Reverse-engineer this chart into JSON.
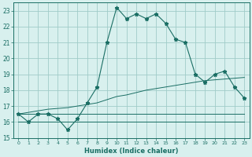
{
  "x": [
    0,
    1,
    2,
    3,
    4,
    5,
    6,
    7,
    8,
    9,
    10,
    11,
    12,
    13,
    14,
    15,
    16,
    17,
    18,
    19,
    20,
    21,
    22,
    23
  ],
  "humidex": [
    16.5,
    16.0,
    16.5,
    16.5,
    16.2,
    15.5,
    16.2,
    17.2,
    18.2,
    21.0,
    23.2,
    22.5,
    22.8,
    22.5,
    22.8,
    22.2,
    21.2,
    21.0,
    19.0,
    18.5,
    19.0,
    19.2,
    18.2,
    17.5
  ],
  "flat_low": [
    16.0,
    16.0,
    16.0,
    16.0,
    16.0,
    16.0,
    16.0,
    16.0,
    16.0,
    16.0,
    16.0,
    16.0,
    16.0,
    16.0,
    16.0,
    16.0,
    16.0,
    16.0,
    16.0,
    16.0,
    16.0,
    16.0,
    16.0,
    16.0
  ],
  "trend_rise": [
    16.5,
    16.6,
    16.7,
    16.8,
    16.85,
    16.9,
    17.0,
    17.1,
    17.2,
    17.4,
    17.6,
    17.7,
    17.85,
    18.0,
    18.1,
    18.2,
    18.3,
    18.4,
    18.5,
    18.6,
    18.65,
    18.7,
    18.75,
    18.8
  ],
  "trend_flat": [
    16.5,
    16.5,
    16.5,
    16.5,
    16.5,
    16.5,
    16.5,
    16.5,
    16.5,
    16.5,
    16.5,
    16.5,
    16.5,
    16.5,
    16.5,
    16.5,
    16.5,
    16.5,
    16.5,
    16.5,
    16.5,
    16.5,
    16.5,
    16.5
  ],
  "color": "#1a6e64",
  "bg_color": "#d8f0ee",
  "grid_color": "#a0ccc8",
  "xlabel": "Humidex (Indice chaleur)",
  "ylim": [
    15,
    23.5
  ],
  "xlim": [
    -0.5,
    23.5
  ],
  "yticks": [
    15,
    16,
    17,
    18,
    19,
    20,
    21,
    22,
    23
  ],
  "xticks": [
    0,
    1,
    2,
    3,
    4,
    5,
    6,
    7,
    8,
    9,
    10,
    11,
    12,
    13,
    14,
    15,
    16,
    17,
    18,
    19,
    20,
    21,
    22,
    23
  ]
}
